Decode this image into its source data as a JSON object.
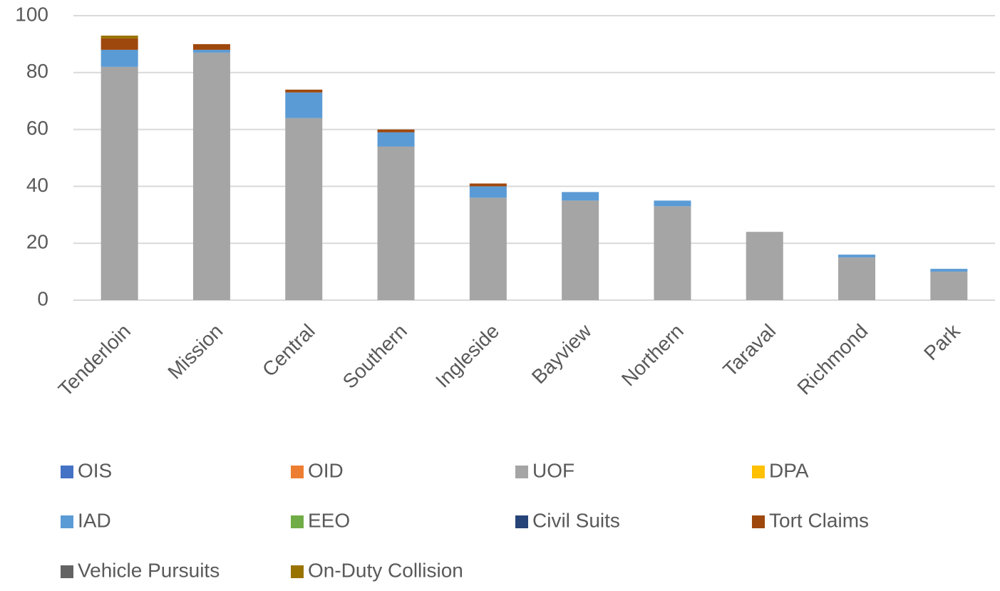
{
  "chart_data": {
    "type": "stacked_bar",
    "categories": [
      "Tenderloin",
      "Mission",
      "Central",
      "Southern",
      "Ingleside",
      "Bayview",
      "Northern",
      "Taraval",
      "Richmond",
      "Park"
    ],
    "series": [
      {
        "name": "OIS",
        "color": "#4472c4",
        "values": [
          0,
          0,
          0,
          0,
          0,
          0,
          0,
          0,
          0,
          0
        ]
      },
      {
        "name": "OID",
        "color": "#ed7d31",
        "values": [
          0,
          0,
          0,
          0,
          0,
          0,
          0,
          0,
          0,
          0
        ]
      },
      {
        "name": "UOF",
        "color": "#a5a5a5",
        "values": [
          82,
          87,
          64,
          54,
          36,
          35,
          33,
          24,
          15,
          10
        ]
      },
      {
        "name": "DPA",
        "color": "#ffc000",
        "values": [
          0,
          0,
          0,
          0,
          0,
          0,
          0,
          0,
          0,
          0
        ]
      },
      {
        "name": "IAD",
        "color": "#5b9bd5",
        "values": [
          6,
          1,
          9,
          5,
          4,
          3,
          2,
          0,
          1,
          1
        ]
      },
      {
        "name": "EEO",
        "color": "#70ad47",
        "values": [
          0,
          0,
          0,
          0,
          0,
          0,
          0,
          0,
          0,
          0
        ]
      },
      {
        "name": "Civil Suits",
        "color": "#264478",
        "values": [
          0,
          0,
          0,
          0,
          0,
          0,
          0,
          0,
          0,
          0
        ]
      },
      {
        "name": "Tort Claims",
        "color": "#9e480e",
        "values": [
          4,
          2,
          1,
          1,
          1,
          0,
          0,
          0,
          0,
          0
        ]
      },
      {
        "name": "Vehicle Pursuits",
        "color": "#636363",
        "values": [
          0,
          0,
          0,
          0,
          0,
          0,
          0,
          0,
          0,
          0
        ]
      },
      {
        "name": "On-Duty Collision",
        "color": "#997300",
        "values": [
          1,
          0,
          0,
          0,
          0,
          0,
          0,
          0,
          0,
          0
        ]
      }
    ],
    "ylim": [
      0,
      100
    ],
    "yticks": [
      0,
      20,
      40,
      60,
      80,
      100
    ],
    "grid": true,
    "legend": "bottom"
  }
}
